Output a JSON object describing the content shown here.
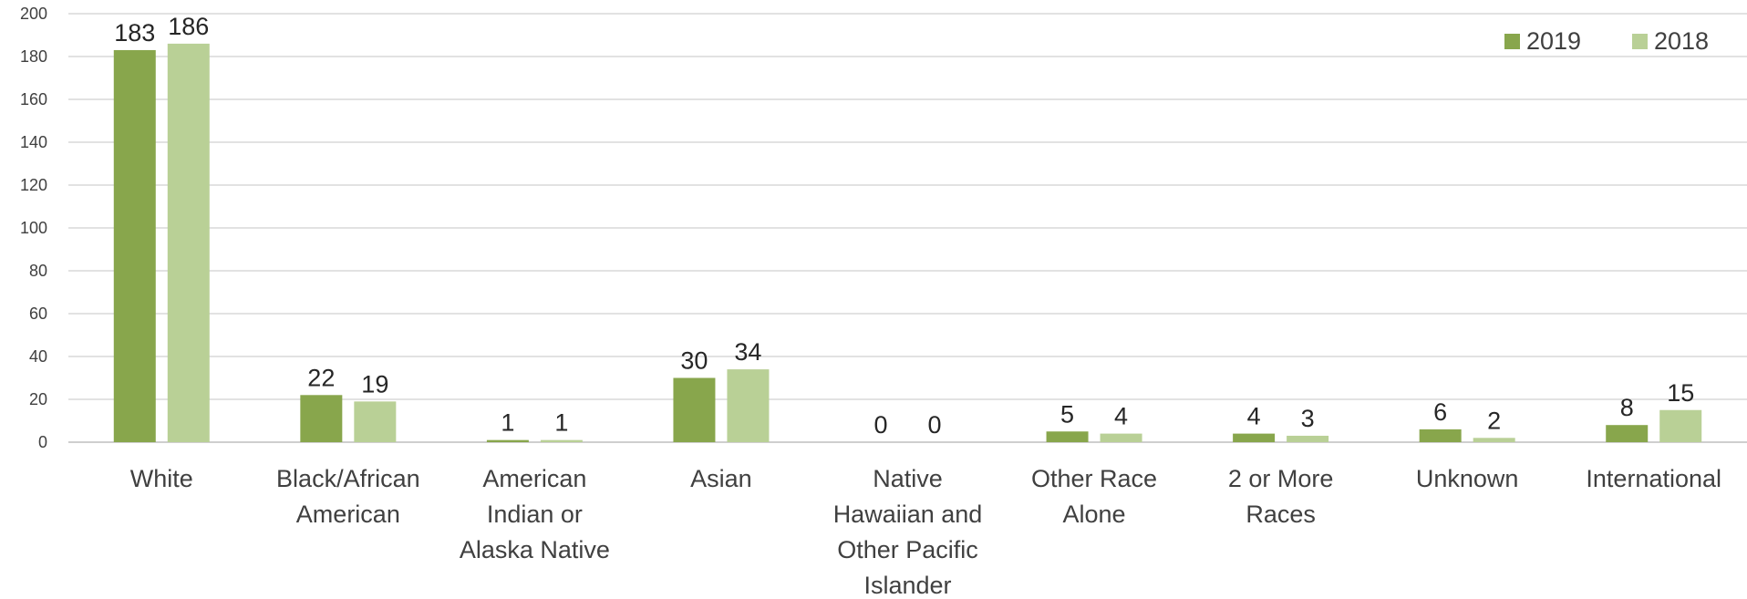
{
  "chart_data": {
    "type": "bar",
    "categories": [
      [
        "White"
      ],
      [
        "Black/African",
        "American"
      ],
      [
        "American",
        "Indian or",
        "Alaska Native"
      ],
      [
        "Asian"
      ],
      [
        "Native",
        "Hawaiian and",
        "Other Pacific",
        "Islander"
      ],
      [
        "Other Race",
        "Alone"
      ],
      [
        "2 or More",
        "Races"
      ],
      [
        "Unknown"
      ],
      [
        "International"
      ]
    ],
    "series": [
      {
        "name": "2019",
        "color": "#88a64c",
        "values": [
          183,
          22,
          1,
          30,
          0,
          5,
          4,
          6,
          8
        ]
      },
      {
        "name": "2018",
        "color": "#b9d096",
        "values": [
          186,
          19,
          1,
          34,
          0,
          4,
          3,
          2,
          15
        ]
      }
    ],
    "ylim": [
      0,
      200
    ],
    "yticks": [
      0,
      20,
      40,
      60,
      80,
      100,
      120,
      140,
      160,
      180,
      200
    ],
    "grid": true,
    "legend": "top-right",
    "data_labels": true
  }
}
